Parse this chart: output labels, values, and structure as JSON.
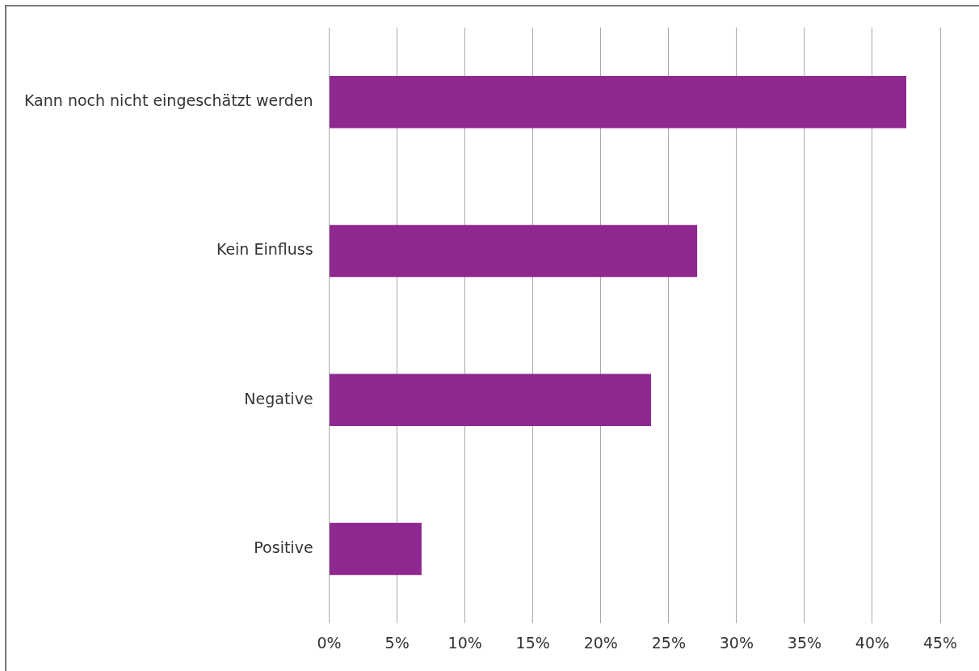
{
  "chart_data": {
    "type": "bar",
    "orientation": "horizontal",
    "categories": [
      "Kann noch nicht eingeschätzt werden",
      "Kein Einfluss",
      "Negative",
      "Positive"
    ],
    "values": [
      42.5,
      27.1,
      23.7,
      6.8
    ],
    "color": "#8e278f",
    "xlim": [
      0,
      45
    ],
    "xticks": [
      {
        "value": 0,
        "label": "0%"
      },
      {
        "value": 5,
        "label": "5%"
      },
      {
        "value": 10,
        "label": "10%"
      },
      {
        "value": 15,
        "label": "15%"
      },
      {
        "value": 20,
        "label": "20%"
      },
      {
        "value": 25,
        "label": "25%"
      },
      {
        "value": 30,
        "label": "30%"
      },
      {
        "value": 35,
        "label": "35%"
      },
      {
        "value": 40,
        "label": "40%"
      },
      {
        "value": 45,
        "label": "45%"
      }
    ],
    "grid": "x",
    "legend": false
  }
}
